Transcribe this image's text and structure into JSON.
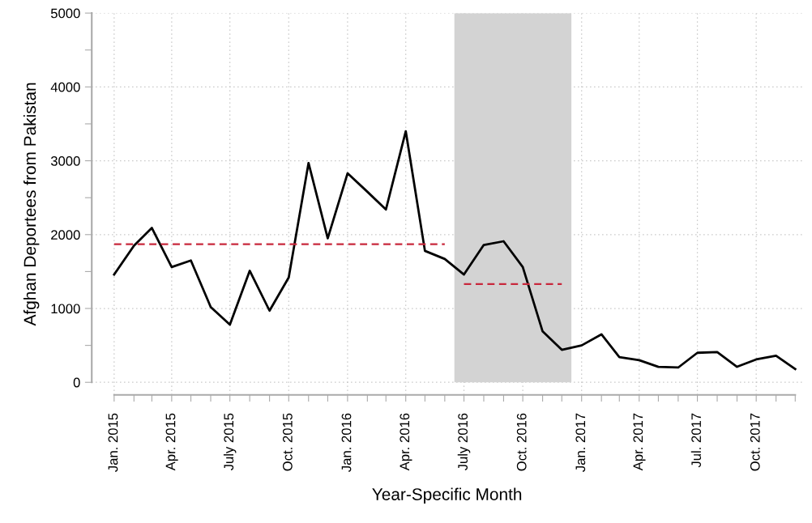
{
  "chart_data": {
    "type": "line",
    "xlabel": "Year-Specific Month",
    "ylabel": "Afghan Deportees from Pakistan",
    "x": [
      "2015-01",
      "2015-02",
      "2015-03",
      "2015-04",
      "2015-05",
      "2015-06",
      "2015-07",
      "2015-08",
      "2015-09",
      "2015-10",
      "2015-11",
      "2015-12",
      "2016-01",
      "2016-02",
      "2016-03",
      "2016-04",
      "2016-05",
      "2016-06",
      "2016-07",
      "2016-08",
      "2016-09",
      "2016-10",
      "2016-11",
      "2016-12",
      "2017-01",
      "2017-02",
      "2017-03",
      "2017-04",
      "2017-05",
      "2017-06",
      "2017-07",
      "2017-08",
      "2017-09",
      "2017-10",
      "2017-11",
      "2017-12"
    ],
    "series": [
      {
        "color": "#000000",
        "values": [
          1460,
          1850,
          2090,
          1560,
          1650,
          1020,
          780,
          1510,
          970,
          1420,
          2970,
          1950,
          2830,
          2580,
          2340,
          3400,
          1780,
          1670,
          1460,
          1860,
          1910,
          1560,
          690,
          440,
          500,
          650,
          340,
          300,
          210,
          200,
          400,
          410,
          210,
          310,
          360,
          180
        ]
      },
      {
        "type": "line",
        "line_style": "dashed",
        "color": "#c8283c",
        "x": [
          "2015-01",
          "2016-06"
        ],
        "values": [
          1870,
          1870
        ]
      },
      {
        "type": "line",
        "line_style": "dashed",
        "color": "#c8283c",
        "x": [
          "2016-07",
          "2016-12"
        ],
        "values": [
          1330,
          1330
        ]
      }
    ],
    "bands": [
      {
        "axis": "x",
        "from": "2016-06-16",
        "to": "2016-12-16",
        "color": "#d3d3d3"
      }
    ],
    "xlim": [
      "2014-11-27",
      "2017-12-12"
    ],
    "xticks": [
      {
        "value": "2015-01",
        "label": "Jan. 2015"
      },
      {
        "value": "2015-02",
        "label": null
      },
      {
        "value": "2015-03",
        "label": null
      },
      {
        "value": "2015-04",
        "label": "Apr. 2015"
      },
      {
        "value": "2015-05",
        "label": null
      },
      {
        "value": "2015-06",
        "label": null
      },
      {
        "value": "2015-07",
        "label": "July 2015"
      },
      {
        "value": "2015-08",
        "label": null
      },
      {
        "value": "2015-09",
        "label": null
      },
      {
        "value": "2015-10",
        "label": "Oct. 2015"
      },
      {
        "value": "2015-11",
        "label": null
      },
      {
        "value": "2015-12",
        "label": null
      },
      {
        "value": "2016-01",
        "label": "Jan. 2016"
      },
      {
        "value": "2016-02",
        "label": null
      },
      {
        "value": "2016-03",
        "label": null
      },
      {
        "value": "2016-04",
        "label": "Apr. 2016"
      },
      {
        "value": "2016-05",
        "label": null
      },
      {
        "value": "2016-06",
        "label": null
      },
      {
        "value": "2016-07",
        "label": "July 2016"
      },
      {
        "value": "2016-08",
        "label": null
      },
      {
        "value": "2016-09",
        "label": null
      },
      {
        "value": "2016-10",
        "label": "Oct. 2016"
      },
      {
        "value": "2016-11",
        "label": null
      },
      {
        "value": "2016-12",
        "label": null
      },
      {
        "value": "2017-01",
        "label": "Jan. 2017"
      },
      {
        "value": "2017-02",
        "label": null
      },
      {
        "value": "2017-03",
        "label": null
      },
      {
        "value": "2017-04",
        "label": "Apr. 2017"
      },
      {
        "value": "2017-05",
        "label": null
      },
      {
        "value": "2017-06",
        "label": null
      },
      {
        "value": "2017-07",
        "label": "Jul. 2017"
      },
      {
        "value": "2017-08",
        "label": null
      },
      {
        "value": "2017-09",
        "label": null
      },
      {
        "value": "2017-10",
        "label": "Oct. 2017"
      },
      {
        "value": "2017-11",
        "label": null
      },
      {
        "value": "2017-12",
        "label": null
      }
    ],
    "ylim": [
      -170,
      5000
    ],
    "yticks": [
      0,
      {
        "value": 500,
        "label": null
      },
      1000,
      {
        "value": 1500,
        "label": null
      },
      2000,
      {
        "value": 2500,
        "label": null
      },
      3000,
      {
        "value": 3500,
        "label": null
      },
      4000,
      {
        "value": 4500,
        "label": null
      },
      5000
    ],
    "grid": true,
    "line_style": "solid",
    "marker": "none"
  }
}
